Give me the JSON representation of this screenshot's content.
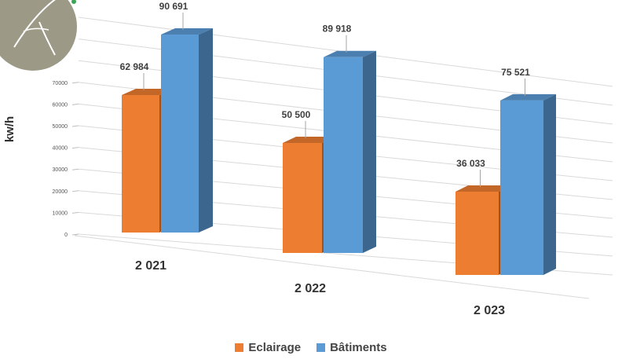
{
  "chart_data": {
    "type": "bar",
    "ylabel": "kw/h",
    "ylim": [
      0,
      70000
    ],
    "yticks": [
      "0",
      "10000",
      "20000",
      "30000",
      "40000",
      "50000",
      "60000",
      "70000"
    ],
    "categories": [
      "2 021",
      "2 022",
      "2 023"
    ],
    "series": [
      {
        "name": "Eclairage",
        "values": [
          62984,
          50500,
          36033
        ],
        "labels": [
          "62 984",
          "50 500",
          "36 033"
        ],
        "color": "#ED7D31"
      },
      {
        "name": "Bâtiments",
        "values": [
          90691,
          89918,
          75521
        ],
        "labels": [
          "90 691",
          "89 918",
          "75 521"
        ],
        "color": "#5B9BD5"
      }
    ],
    "grid": true,
    "legend_position": "bottom"
  }
}
